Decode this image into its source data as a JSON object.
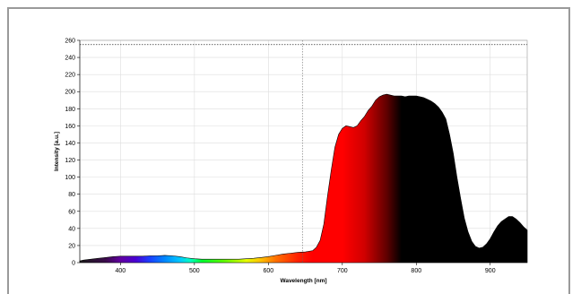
{
  "chart_data": {
    "type": "area",
    "xlabel": "Wavelength [nm]",
    "ylabel": "Intensity [a.u.]",
    "xlim": [
      345,
      950
    ],
    "ylim": [
      0,
      260
    ],
    "x_ticks": [
      400,
      500,
      600,
      700,
      800,
      900
    ],
    "y_ticks": [
      0,
      20,
      40,
      60,
      80,
      100,
      120,
      140,
      160,
      180,
      200,
      220,
      240,
      260
    ],
    "grid": true,
    "saturation_level": 255,
    "cursor_x": 646,
    "fill": "wavelength-colored spectrum (visible colors 380-780 nm, black beyond)",
    "x": [
      345,
      350,
      360,
      370,
      380,
      390,
      400,
      410,
      420,
      430,
      440,
      450,
      460,
      470,
      480,
      490,
      500,
      510,
      520,
      530,
      540,
      550,
      560,
      570,
      580,
      590,
      600,
      610,
      620,
      630,
      640,
      650,
      660,
      665,
      670,
      675,
      680,
      685,
      690,
      695,
      700,
      705,
      710,
      715,
      720,
      725,
      730,
      735,
      740,
      745,
      750,
      755,
      760,
      765,
      770,
      775,
      780,
      785,
      790,
      795,
      800,
      805,
      810,
      815,
      820,
      825,
      830,
      835,
      840,
      845,
      850,
      855,
      860,
      865,
      870,
      875,
      880,
      885,
      890,
      895,
      900,
      905,
      910,
      915,
      920,
      925,
      930,
      935,
      940,
      945,
      950
    ],
    "values": [
      2,
      3,
      4,
      5,
      6,
      7,
      7.5,
      7.5,
      7.5,
      7.5,
      8,
      8,
      8.5,
      8,
      7,
      5.5,
      4.5,
      4,
      4,
      4,
      4,
      4,
      4,
      4.5,
      5,
      6,
      7,
      8.5,
      10,
      11,
      12,
      12.5,
      14,
      18,
      26,
      45,
      78,
      108,
      135,
      150,
      157,
      160,
      159,
      158,
      160,
      166,
      171,
      178,
      183,
      190,
      194,
      196,
      197,
      196,
      195,
      195,
      195,
      194,
      195,
      195,
      195,
      194,
      193,
      191,
      189,
      186,
      182,
      176,
      168,
      150,
      128,
      100,
      75,
      52,
      36,
      25,
      19,
      17,
      18,
      22,
      28,
      36,
      43,
      48,
      51,
      54,
      54,
      51,
      47,
      42,
      38
    ]
  }
}
